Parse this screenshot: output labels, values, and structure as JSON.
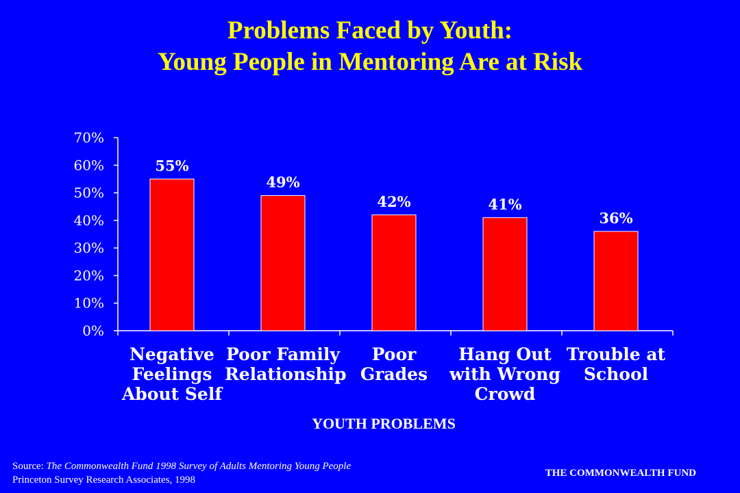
{
  "slide": {
    "title_line1": "Problems Faced by Youth:",
    "title_line2": "Young People in Mentoring Are at Risk",
    "source_prefix": "Source: ",
    "source_title": "The Commonwealth Fund 1998 Survey of Adults Mentoring Young People",
    "source_line2": "Princeton Survey Research Associates, 1998",
    "brand": "THE COMMONWEALTH FUND"
  },
  "chart_data": {
    "type": "bar",
    "title": "",
    "xlabel": "YOUTH PROBLEMS",
    "ylabel": "",
    "categories": [
      "Negative Feelings About Self",
      "Poor Family Relationship",
      "Poor Grades",
      "Hang Out with Wrong Crowd",
      "Trouble at School"
    ],
    "category_lines": [
      [
        "Negative",
        "Feelings",
        "About Self"
      ],
      [
        "Poor Family",
        "Relationship"
      ],
      [
        "Poor Grades"
      ],
      [
        "Hang Out",
        "with Wrong",
        "Crowd"
      ],
      [
        "Trouble at",
        "School"
      ]
    ],
    "values": [
      55,
      49,
      42,
      41,
      36
    ],
    "data_labels": [
      "55%",
      "49%",
      "42%",
      "41%",
      "36%"
    ],
    "ylim": [
      0,
      70
    ],
    "yticks": [
      0,
      10,
      20,
      30,
      40,
      50,
      60,
      70
    ],
    "ytick_labels": [
      "0%",
      "10%",
      "20%",
      "30%",
      "40%",
      "50%",
      "60%",
      "70%"
    ],
    "grid": false,
    "legend": "none",
    "colors": {
      "bar": "#ff0000",
      "bar_edge": "#ffffff",
      "axis": "#ffffff",
      "background": "#0000ff"
    }
  }
}
